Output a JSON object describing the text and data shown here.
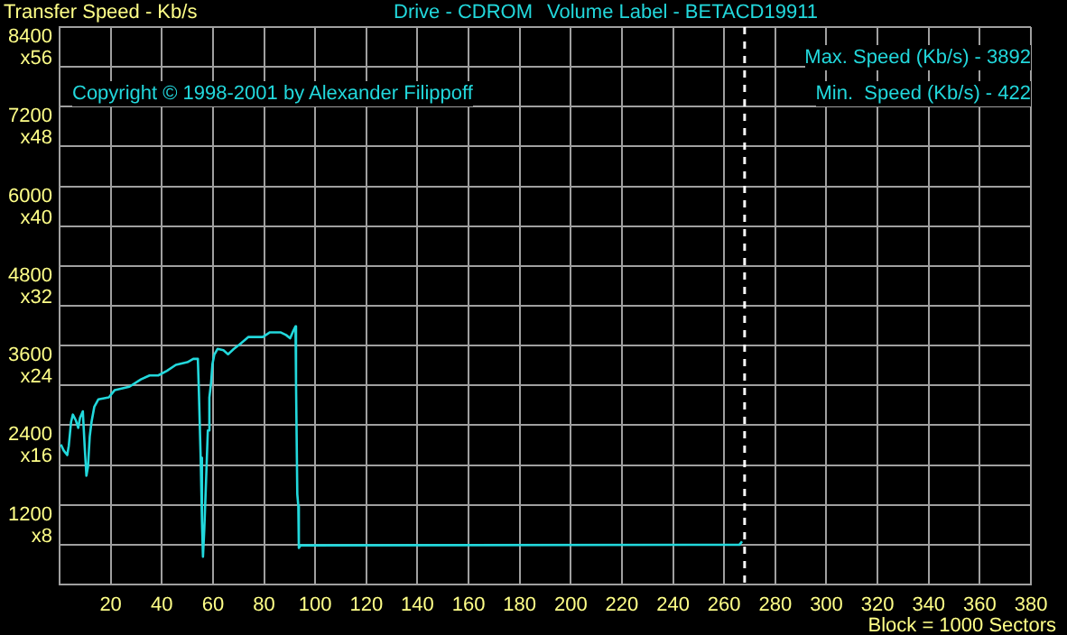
{
  "chart_data": {
    "type": "line",
    "ylabel": "Transfer Speed - Kb/s",
    "xlabel": "Block = 1000 Sectors",
    "annotations": [
      "Drive - CDROM",
      "Volume Label - BETACD19911",
      "Copyright © 1998-2001 by Alexander Filippoff",
      "Max. Speed (Kb/s) - 3892",
      "Min.  Speed (Kb/s) - 422",
      "x8",
      "x16",
      "x24",
      "x32",
      "x40",
      "x48",
      "x56"
    ],
    "series": [
      {
        "color": "#22d8dc",
        "x": [
          0.5,
          1.6,
          3,
          3.6,
          4.5,
          5.2,
          6.4,
          7.3,
          8,
          9.1,
          9.8,
          10.5,
          11.1,
          11.8,
          12.5,
          13.6,
          15.2,
          19.3,
          21.6,
          27.3,
          31.8,
          35.2,
          38.6,
          42,
          45.5,
          50,
          52.3,
          54.1,
          54.5,
          55.2,
          55.7,
          56.1,
          56.6,
          57.3,
          58,
          58.6,
          59.3,
          59.8,
          60.5,
          61.8,
          64.1,
          65.9,
          68.2,
          70.5,
          73.9,
          79.5,
          82.3,
          86.4,
          88.6,
          90.2,
          91.4,
          92.3,
          92.5,
          93,
          93.4,
          93.6,
          94.3,
          95.5,
          266,
          267
        ],
        "values": [
          2110,
          2020,
          1950,
          2090,
          2450,
          2560,
          2470,
          2360,
          2510,
          2610,
          2090,
          1640,
          1770,
          2230,
          2450,
          2680,
          2790,
          2820,
          2930,
          2980,
          3090,
          3150,
          3150,
          3220,
          3310,
          3350,
          3400,
          3400,
          2910,
          1910,
          960,
          420,
          820,
          1550,
          2320,
          2820,
          3050,
          3320,
          3460,
          3550,
          3530,
          3470,
          3550,
          3620,
          3730,
          3730,
          3800,
          3800,
          3760,
          3710,
          3820,
          3890,
          3050,
          1360,
          1180,
          550,
          590,
          590,
          600,
          650
        ]
      }
    ],
    "xlim": [
      0,
      380
    ],
    "xticks": [
      {
        "value": 0,
        "label": null
      },
      20,
      40,
      60,
      80,
      100,
      120,
      140,
      160,
      180,
      200,
      220,
      240,
      260,
      280,
      300,
      320,
      340,
      360,
      380
    ],
    "ylim": [
      0,
      8400
    ],
    "yticks": [
      {
        "value": 0,
        "label": null
      },
      {
        "value": 600,
        "label": null
      },
      1200,
      {
        "value": 1800,
        "label": null
      },
      2400,
      {
        "value": 3000,
        "label": null
      },
      3600,
      {
        "value": 4200,
        "label": null
      },
      4800,
      {
        "value": 5400,
        "label": null
      },
      6000,
      {
        "value": 6600,
        "label": null
      },
      7200,
      {
        "value": 7800,
        "label": null
      },
      8400
    ],
    "ref_lines": [
      {
        "axis": "x",
        "value": 268,
        "color": "#ffffff",
        "line_style": "dashed"
      }
    ],
    "grid": true,
    "legend": false,
    "marker": "none",
    "line_style": "solid"
  }
}
